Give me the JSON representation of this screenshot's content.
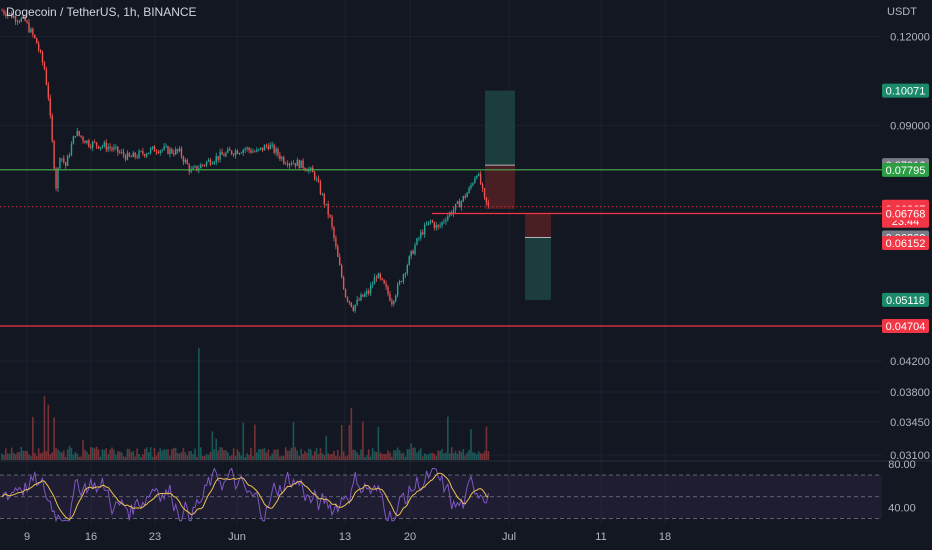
{
  "header": {
    "symbol": "Dogecoin / TetherUS",
    "interval": "1h",
    "exchange": "BINANCE"
  },
  "colors": {
    "background": "#131722",
    "grid": "#1e222d",
    "candle_up": "#26a69a",
    "candle_down": "#ef5350",
    "green_line": "#4caf50",
    "red_line": "#f23645",
    "rsi_line": "#7e57c2",
    "rsi_ma": "#f0c050",
    "long_target_zone": "#1b3d3b",
    "long_stop_zone": "#4a1f24"
  },
  "chart_data": {
    "type": "candlestick",
    "title": "",
    "currency_label": "USDT",
    "x_ticks": [
      "9",
      "16",
      "23",
      "Jun",
      "13",
      "20",
      "Jul",
      "11",
      "18"
    ],
    "y_ticks": [
      {
        "label": "0.12000",
        "value": 0.12
      },
      {
        "label": "0.09000",
        "value": 0.09
      },
      {
        "label": "0.04200",
        "value": 0.042
      },
      {
        "label": "0.03800",
        "value": 0.038
      },
      {
        "label": "0.03450",
        "value": 0.0345
      },
      {
        "label": "0.03100",
        "value": 0.031
      }
    ],
    "scale": "log",
    "ylim": [
      0.0305,
      0.135
    ],
    "price_path": [
      [
        0,
        0.1305
      ],
      [
        6,
        0.128
      ],
      [
        12,
        0.126
      ],
      [
        18,
        0.1175
      ],
      [
        22,
        0.108
      ],
      [
        24,
        0.099
      ],
      [
        26,
        0.085
      ],
      [
        28,
        0.074
      ],
      [
        30,
        0.082
      ],
      [
        33,
        0.079
      ],
      [
        38,
        0.088
      ],
      [
        45,
        0.085
      ],
      [
        55,
        0.084
      ],
      [
        66,
        0.081
      ],
      [
        80,
        0.0835
      ],
      [
        92,
        0.0825
      ],
      [
        98,
        0.0775
      ],
      [
        108,
        0.0805
      ],
      [
        118,
        0.0825
      ],
      [
        126,
        0.0835
      ],
      [
        132,
        0.0825
      ],
      [
        138,
        0.0845
      ],
      [
        146,
        0.0805
      ],
      [
        154,
        0.0795
      ],
      [
        158,
        0.0785
      ],
      [
        162,
        0.0765
      ],
      [
        166,
        0.0715
      ],
      [
        170,
        0.0665
      ],
      [
        174,
        0.0585
      ],
      [
        178,
        0.052
      ],
      [
        182,
        0.05
      ],
      [
        186,
        0.0515
      ],
      [
        190,
        0.0525
      ],
      [
        194,
        0.0555
      ],
      [
        198,
        0.0535
      ],
      [
        202,
        0.051
      ],
      [
        206,
        0.054
      ],
      [
        210,
        0.0575
      ],
      [
        214,
        0.061
      ],
      [
        218,
        0.064
      ],
      [
        222,
        0.066
      ],
      [
        226,
        0.0645
      ],
      [
        230,
        0.067
      ],
      [
        234,
        0.0685
      ],
      [
        238,
        0.0705
      ],
      [
        242,
        0.073
      ],
      [
        246,
        0.0775
      ],
      [
        248,
        0.0745
      ],
      [
        250,
        0.0705
      ],
      [
        252,
        0.0692
      ]
    ],
    "volume": "present",
    "price_levels": [
      {
        "label": "0.07795",
        "value": 0.07795,
        "kind": "horizontal-line",
        "color": "#4caf50"
      },
      {
        "label": "0.06768",
        "value": 0.06768,
        "kind": "horizontal-line",
        "color": "#f23645"
      },
      {
        "label": "0.04704",
        "value": 0.04704,
        "kind": "horizontal-line",
        "color": "#f23645"
      }
    ],
    "price_tags": [
      {
        "label": "0.10071",
        "value": 0.10071,
        "bg": "#1b8a6b",
        "fg": "#ffffff"
      },
      {
        "label": "0.07916",
        "value": 0.07916,
        "bg": "#787b86",
        "fg": "#ffffff"
      },
      {
        "label": "0.07795",
        "value": 0.07795,
        "bg": "#2e9e45",
        "fg": "#ffffff"
      },
      {
        "label": "0.06917",
        "value": 0.06917,
        "bg": "#f23645",
        "fg": "#ffffff",
        "sub": "23:44"
      },
      {
        "label": "0.06867",
        "value": 0.06867,
        "bg": "#f23645",
        "fg": "#ffffff"
      },
      {
        "label": "0.06768",
        "value": 0.06768,
        "bg": "#f23645",
        "fg": "#ffffff"
      },
      {
        "label": "0.06263",
        "value": 0.06263,
        "bg": "#787b86",
        "fg": "#ffffff"
      },
      {
        "label": "0.06152",
        "value": 0.06152,
        "bg": "#f23645",
        "fg": "#ffffff"
      },
      {
        "label": "0.05118",
        "value": 0.05118,
        "bg": "#1b8a6b",
        "fg": "#ffffff"
      },
      {
        "label": "0.04704",
        "value": 0.04704,
        "bg": "#f23645",
        "fg": "#ffffff"
      }
    ],
    "positions": [
      {
        "kind": "long",
        "entry": 0.07916,
        "target": 0.10071,
        "stop": 0.06867
      },
      {
        "kind": "short",
        "entry": 0.06263,
        "target": 0.05118,
        "stop": 0.06768
      }
    ],
    "rsi": {
      "ticks": [
        {
          "label": "80.00",
          "value": 80
        },
        {
          "label": "40.00",
          "value": 40
        }
      ],
      "upper_band": 70,
      "lower_band": 30,
      "ylim": [
        24,
        82
      ]
    }
  }
}
